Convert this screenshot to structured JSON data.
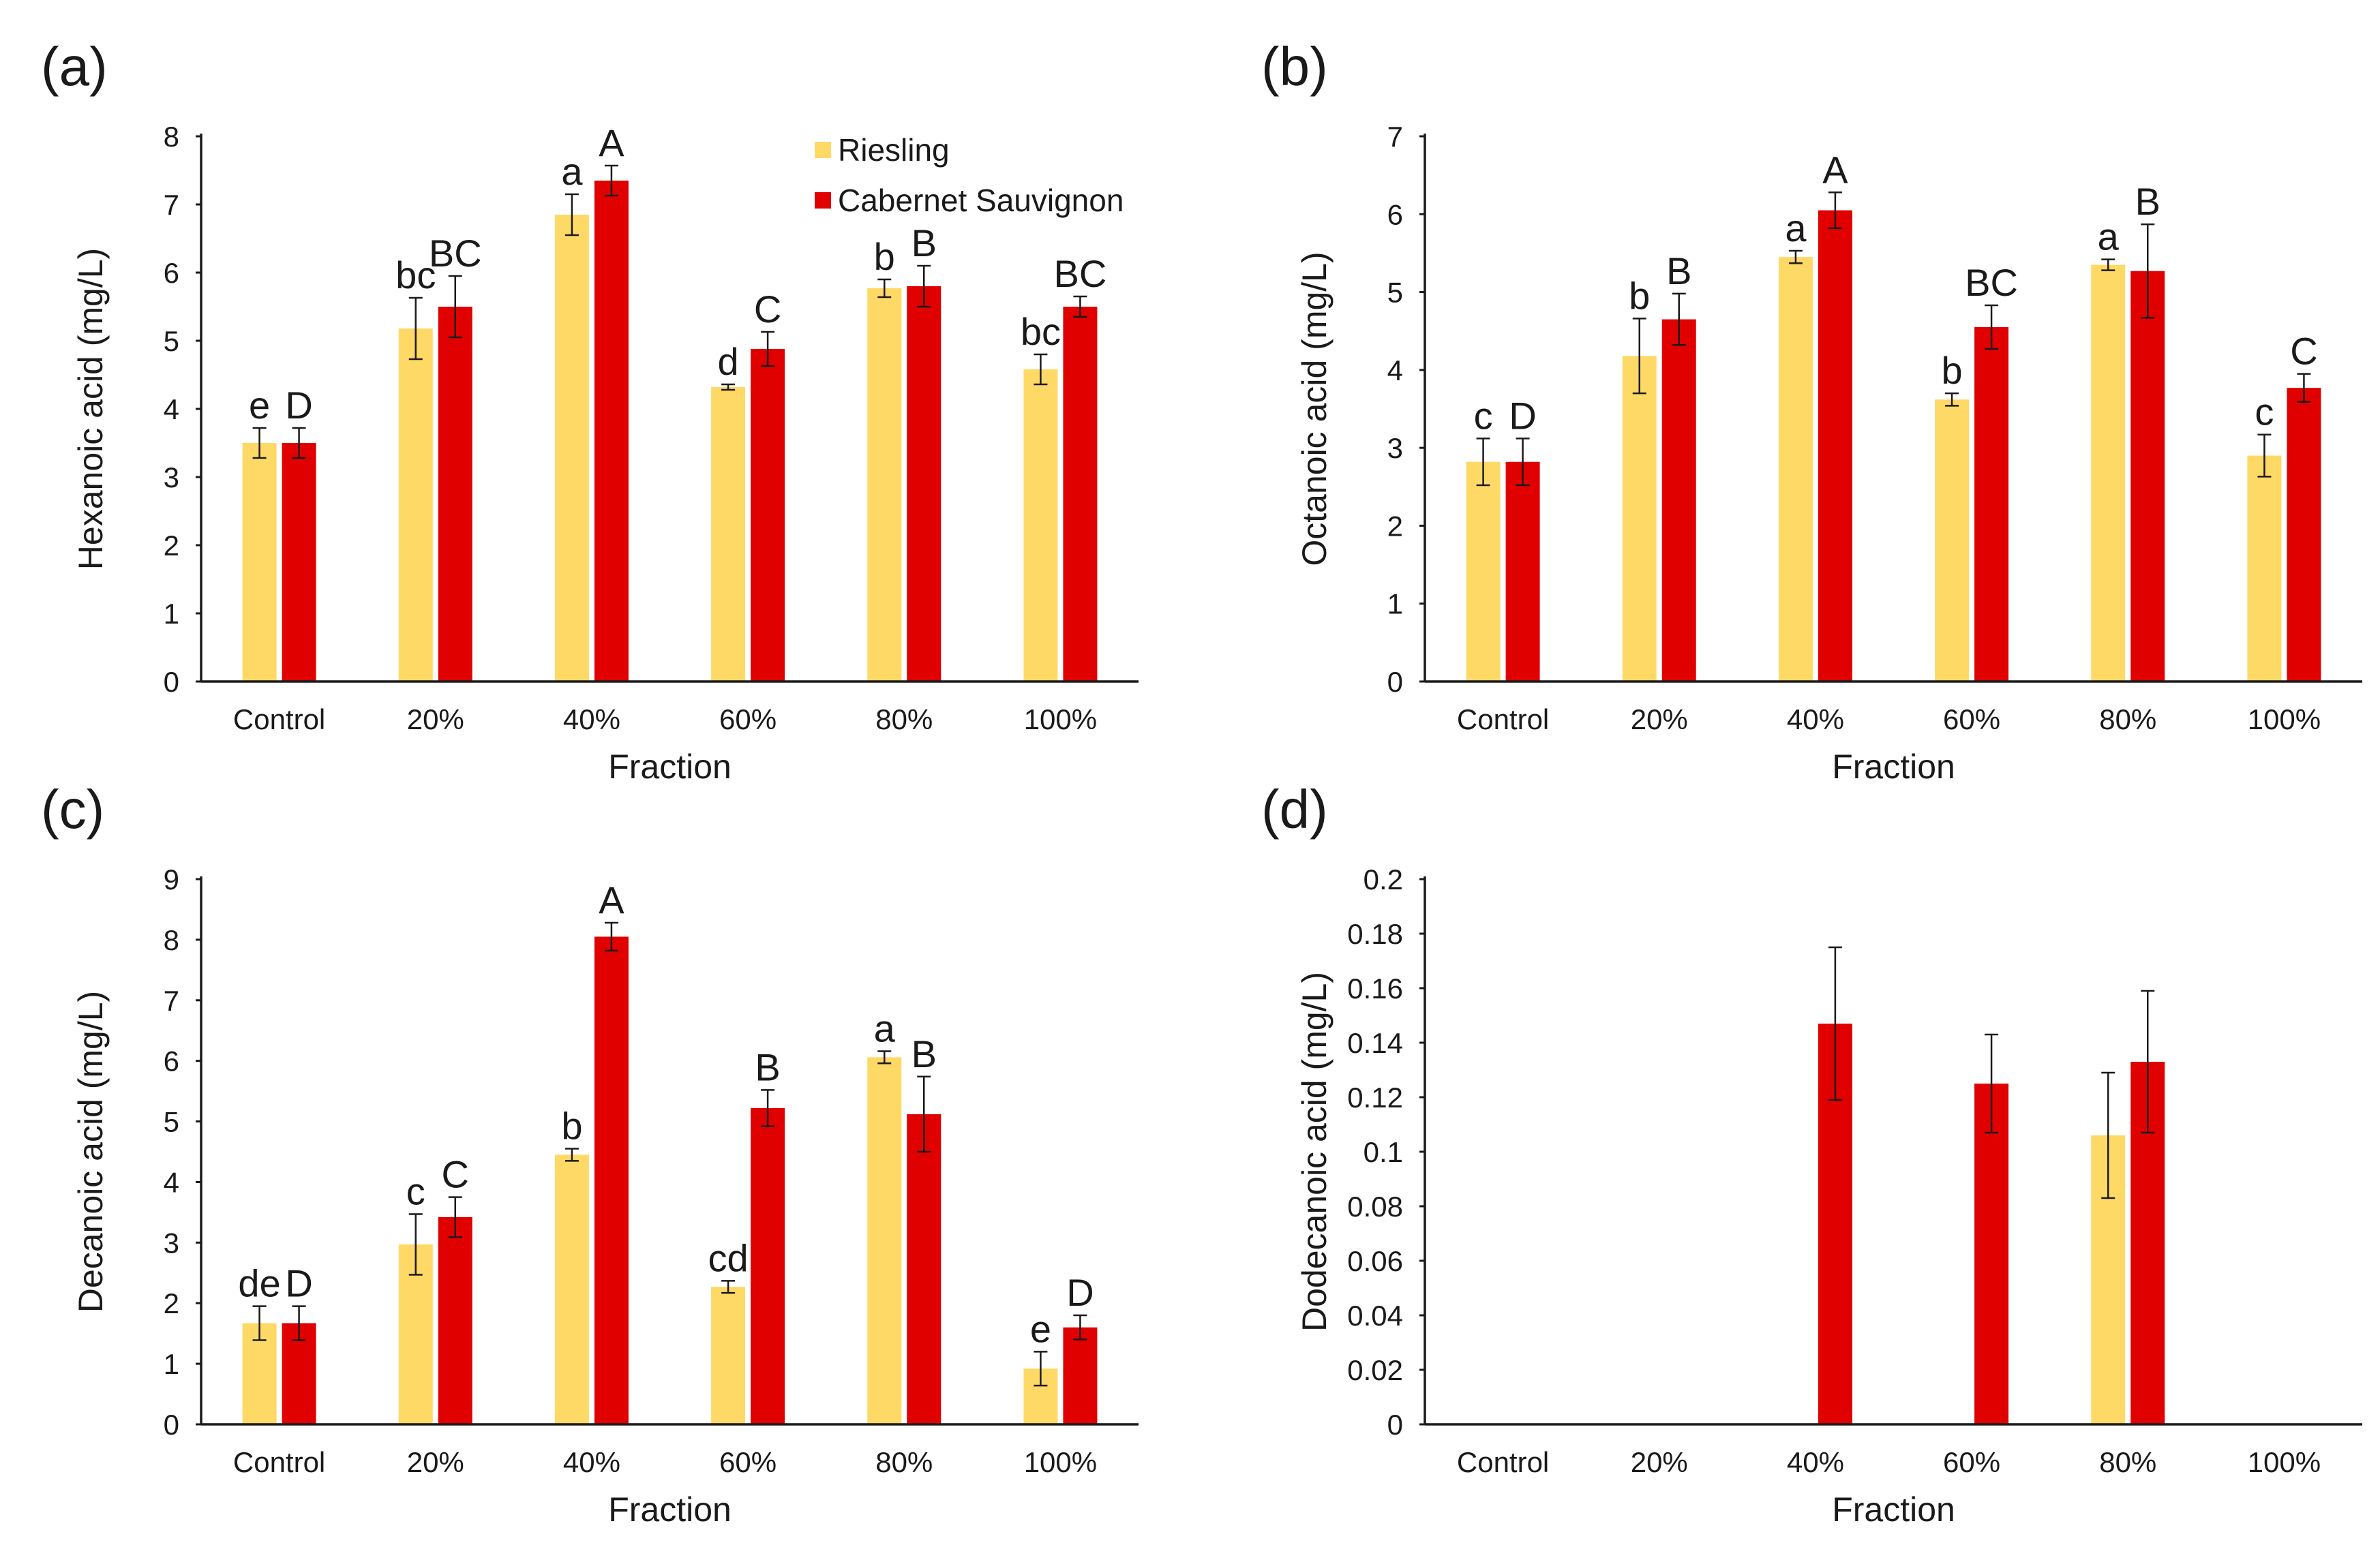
{
  "legend": {
    "series_names": [
      "Riesling",
      "Cabernet Sauvignon"
    ],
    "colors": [
      "#FFD966",
      "#E00000"
    ]
  },
  "chart_data": [
    {
      "type": "bar",
      "panel_label": "(a)",
      "title": "",
      "xlabel": "Fraction",
      "ylabel": "Hexanoic acid (mg/L)",
      "categories": [
        "Control",
        "20%",
        "40%",
        "60%",
        "80%",
        "100%"
      ],
      "ylim": [
        0,
        8
      ],
      "yticks": [
        0,
        1,
        2,
        3,
        4,
        5,
        6,
        7,
        8
      ],
      "ytick_labels": [
        "0",
        "1",
        "2",
        "3",
        "4",
        "5",
        "6",
        "7",
        "8"
      ],
      "show_legend": true,
      "legend_position": "top-right",
      "series": [
        {
          "name": "Riesling",
          "values": [
            3.5,
            5.18,
            6.85,
            4.32,
            5.77,
            4.58
          ],
          "errors": [
            0.22,
            0.45,
            0.3,
            0.04,
            0.13,
            0.22
          ],
          "labels": [
            "e",
            "bc",
            "a",
            "d",
            "b",
            "bc"
          ]
        },
        {
          "name": "Cabernet Sauvignon",
          "values": [
            3.5,
            5.5,
            7.35,
            4.88,
            5.8,
            5.5
          ],
          "errors": [
            0.22,
            0.45,
            0.22,
            0.25,
            0.3,
            0.15
          ],
          "labels": [
            "D",
            "BC",
            "A",
            "C",
            "B",
            "BC"
          ]
        }
      ]
    },
    {
      "type": "bar",
      "panel_label": "(b)",
      "title": "",
      "xlabel": "Fraction",
      "ylabel": "Octanoic acid (mg/L)",
      "categories": [
        "Control",
        "20%",
        "40%",
        "60%",
        "80%",
        "100%"
      ],
      "ylim": [
        0,
        7
      ],
      "yticks": [
        0,
        1,
        2,
        3,
        4,
        5,
        6,
        7
      ],
      "ytick_labels": [
        "0",
        "1",
        "2",
        "3",
        "4",
        "5",
        "6",
        "7"
      ],
      "show_legend": false,
      "series": [
        {
          "name": "Riesling",
          "values": [
            2.82,
            4.18,
            5.45,
            3.62,
            5.35,
            2.9
          ],
          "errors": [
            0.3,
            0.48,
            0.08,
            0.08,
            0.07,
            0.27
          ],
          "labels": [
            "c",
            "b",
            "a",
            "b",
            "a",
            "c"
          ]
        },
        {
          "name": "Cabernet Sauvignon",
          "values": [
            2.82,
            4.65,
            6.05,
            4.55,
            5.27,
            3.77
          ],
          "errors": [
            0.3,
            0.33,
            0.23,
            0.28,
            0.6,
            0.18
          ],
          "labels": [
            "D",
            "B",
            "A",
            "BC",
            "B",
            "C"
          ]
        }
      ]
    },
    {
      "type": "bar",
      "panel_label": "(c)",
      "title": "",
      "xlabel": "Fraction",
      "ylabel": "Decanoic acid (mg/L)",
      "categories": [
        "Control",
        "20%",
        "40%",
        "60%",
        "80%",
        "100%"
      ],
      "ylim": [
        0,
        9
      ],
      "yticks": [
        0,
        1,
        2,
        3,
        4,
        5,
        6,
        7,
        8,
        9
      ],
      "ytick_labels": [
        "0",
        "1",
        "2",
        "3",
        "4",
        "5",
        "6",
        "7",
        "8",
        "9"
      ],
      "show_legend": false,
      "series": [
        {
          "name": "Riesling",
          "values": [
            1.67,
            2.97,
            4.45,
            2.27,
            6.06,
            0.92
          ],
          "errors": [
            0.28,
            0.5,
            0.1,
            0.1,
            0.1,
            0.28
          ],
          "labels": [
            "de",
            "c",
            "b",
            "cd",
            "a",
            "e"
          ]
        },
        {
          "name": "Cabernet Sauvignon",
          "values": [
            1.67,
            3.42,
            8.05,
            5.22,
            5.12,
            1.6
          ],
          "errors": [
            0.28,
            0.33,
            0.23,
            0.3,
            0.62,
            0.2
          ],
          "labels": [
            "D",
            "C",
            "A",
            "B",
            "B",
            "D"
          ]
        }
      ]
    },
    {
      "type": "bar",
      "panel_label": "(d)",
      "title": "",
      "xlabel": "Fraction",
      "ylabel": "Dodecanoic acid (mg/L)",
      "categories": [
        "Control",
        "20%",
        "40%",
        "60%",
        "80%",
        "100%"
      ],
      "ylim": [
        0,
        0.2
      ],
      "yticks": [
        0,
        0.02,
        0.04,
        0.06,
        0.08,
        0.1,
        0.12,
        0.14,
        0.16,
        0.18,
        0.2
      ],
      "ytick_labels": [
        "0",
        "0.02",
        "0.04",
        "0.06",
        "0.08",
        "0.1",
        "0.12",
        "0.14",
        "0.16",
        "0.18",
        "0.2"
      ],
      "show_legend": false,
      "series": [
        {
          "name": "Riesling",
          "values": [
            0,
            0,
            0,
            0,
            0.106,
            0
          ],
          "errors": [
            0,
            0,
            0,
            0,
            0.023,
            0
          ],
          "labels": [
            "",
            "",
            "",
            "",
            "",
            ""
          ]
        },
        {
          "name": "Cabernet Sauvignon",
          "values": [
            0,
            0,
            0.147,
            0.125,
            0.133,
            0
          ],
          "errors": [
            0,
            0,
            0.028,
            0.018,
            0.026,
            0
          ],
          "labels": [
            "",
            "",
            "",
            "",
            "",
            ""
          ]
        }
      ]
    }
  ]
}
